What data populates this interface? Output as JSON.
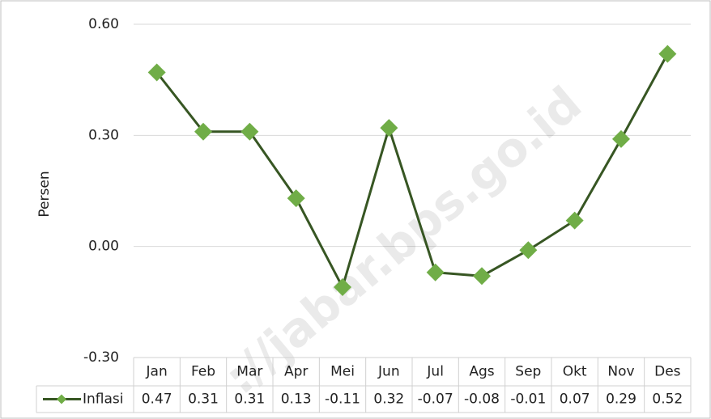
{
  "chart_data": {
    "type": "line",
    "y_label": "Persen",
    "categories": [
      "Jan",
      "Feb",
      "Mar",
      "Apr",
      "Mei",
      "Jun",
      "Jul",
      "Ags",
      "Sep",
      "Okt",
      "Nov",
      "Des"
    ],
    "series": [
      {
        "name": "Inflasi",
        "color": "#70ad47",
        "line_color": "#375623",
        "values": [
          0.47,
          0.31,
          0.31,
          0.13,
          -0.11,
          0.32,
          -0.07,
          -0.08,
          -0.01,
          0.07,
          0.29,
          0.52
        ]
      }
    ],
    "ylim": [
      -0.3,
      0.6
    ],
    "yticks": [
      {
        "value": -0.3,
        "label": "-0.30"
      },
      {
        "value": 0,
        "label": "0.00"
      },
      {
        "value": 0.3,
        "label": "0.30"
      },
      {
        "value": 0.6,
        "label": "0.60"
      }
    ],
    "grid": true,
    "data_table": true,
    "watermark": "://jabar.bps.go.id"
  }
}
